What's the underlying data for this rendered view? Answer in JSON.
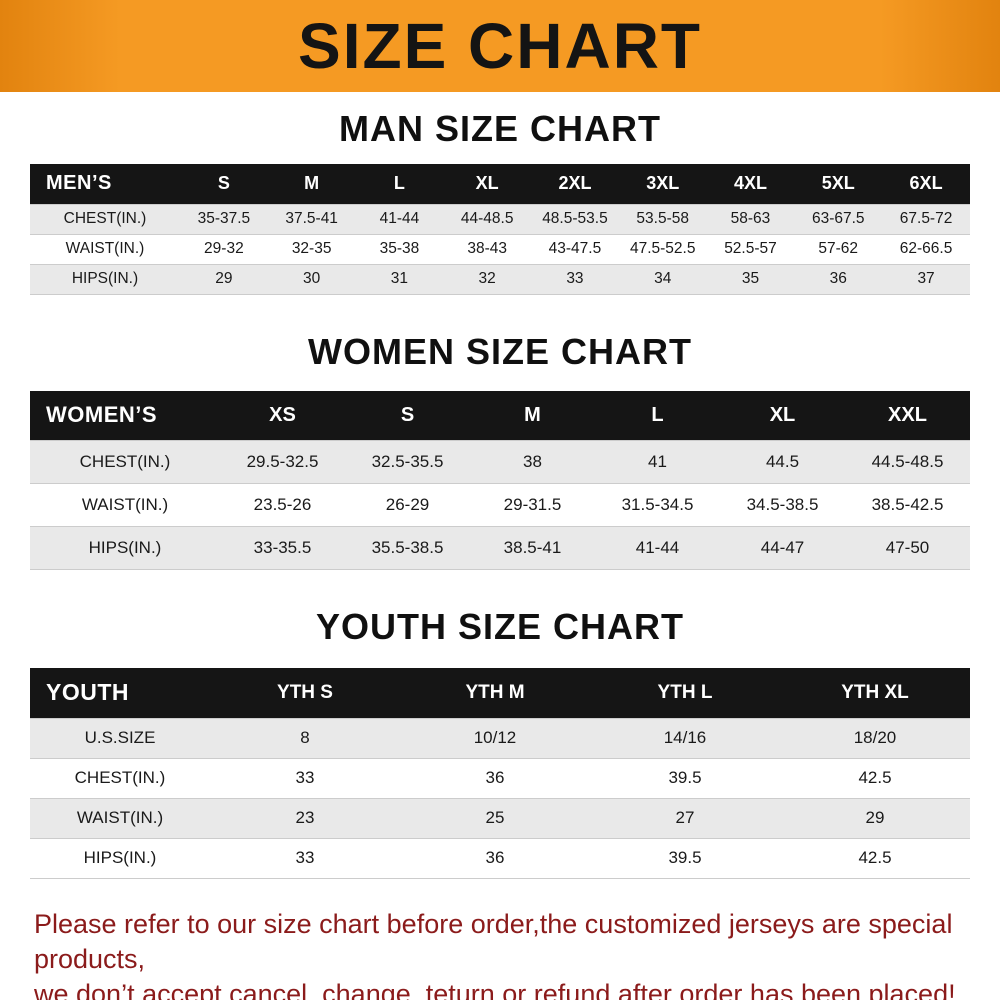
{
  "banner": {
    "title": "SIZE CHART",
    "bg_color": "#F59A23",
    "text_color": "#141414"
  },
  "chart_data": [
    {
      "type": "table",
      "title": "MAN SIZE CHART",
      "columns": [
        "MEN’S",
        "S",
        "M",
        "L",
        "XL",
        "2XL",
        "3XL",
        "4XL",
        "5XL",
        "6XL"
      ],
      "rows": [
        [
          "CHEST(IN.)",
          "35-37.5",
          "37.5-41",
          "41-44",
          "44-48.5",
          "48.5-53.5",
          "53.5-58",
          "58-63",
          "63-67.5",
          "67.5-72"
        ],
        [
          "WAIST(IN.)",
          "29-32",
          "32-35",
          "35-38",
          "38-43",
          "43-47.5",
          "47.5-52.5",
          "52.5-57",
          "57-62",
          "62-66.5"
        ],
        [
          "HIPS(IN.)",
          "29",
          "30",
          "31",
          "32",
          "33",
          "34",
          "35",
          "36",
          "37"
        ]
      ]
    },
    {
      "type": "table",
      "title": "WOMEN SIZE CHART",
      "columns": [
        "WOMEN’S",
        "XS",
        "S",
        "M",
        "L",
        "XL",
        "XXL"
      ],
      "rows": [
        [
          "CHEST(IN.)",
          "29.5-32.5",
          "32.5-35.5",
          "38",
          "41",
          "44.5",
          "44.5-48.5"
        ],
        [
          "WAIST(IN.)",
          "23.5-26",
          "26-29",
          "29-31.5",
          "31.5-34.5",
          "34.5-38.5",
          "38.5-42.5"
        ],
        [
          "HIPS(IN.)",
          "33-35.5",
          "35.5-38.5",
          "38.5-41",
          "41-44",
          "44-47",
          "47-50"
        ]
      ]
    },
    {
      "type": "table",
      "title": "YOUTH SIZE CHART",
      "columns": [
        "YOUTH",
        "YTH S",
        "YTH M",
        "YTH L",
        "YTH XL"
      ],
      "rows": [
        [
          "U.S.SIZE",
          "8",
          "10/12",
          "14/16",
          "18/20"
        ],
        [
          "CHEST(IN.)",
          "33",
          "36",
          "39.5",
          "42.5"
        ],
        [
          "WAIST(IN.)",
          "23",
          "25",
          "27",
          "29"
        ],
        [
          "HIPS(IN.)",
          "33",
          "36",
          "39.5",
          "42.5"
        ]
      ]
    }
  ],
  "footer": {
    "line1": "Please refer to our size chart before order,the customized jerseys are special products,",
    "line2": "we don’t accept cancel, change, teturn or refund after order has been placed!",
    "text_color": "#8B1B1B"
  },
  "colors": {
    "table_header_bg": "#151515",
    "table_header_text": "#FFFFFF",
    "stripe_row_bg": "#E9E9E9",
    "banner_orange": "#F59A23"
  }
}
